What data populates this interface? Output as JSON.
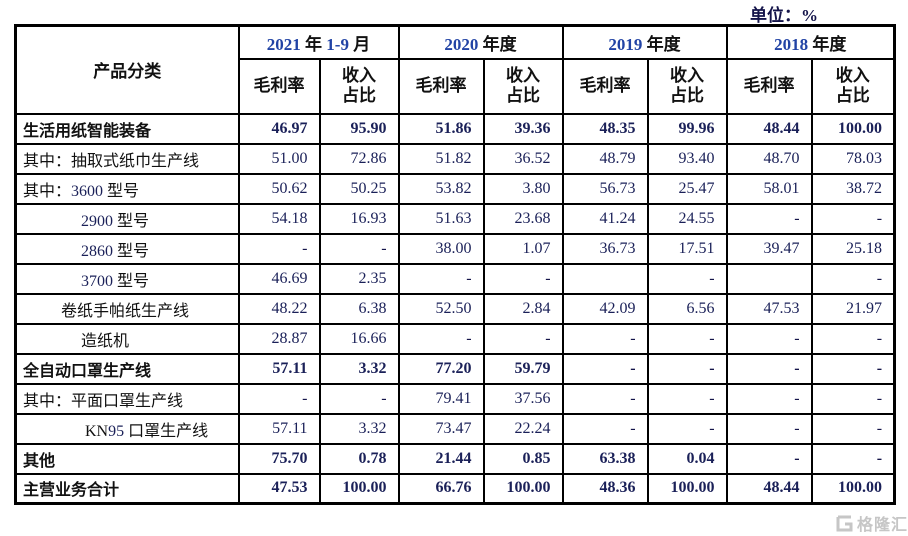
{
  "unit_label": "单位：%",
  "table": {
    "product_col_header": "产品分类",
    "periods": [
      "2021 年 1-9 月",
      "2020 年度",
      "2019 年度",
      "2018 年度"
    ],
    "col_margin": "毛利率",
    "col_share": "收入\n占比"
  },
  "rows": [
    {
      "label": "生活用纸智能装备",
      "bold": true,
      "indent": "l0",
      "v": [
        "46.97",
        "95.90",
        "51.86",
        "39.36",
        "48.35",
        "99.96",
        "48.44",
        "100.00"
      ]
    },
    {
      "label": "其中：抽取式纸巾生产线",
      "bold": false,
      "indent": "l0",
      "v": [
        "51.00",
        "72.86",
        "51.82",
        "36.52",
        "48.79",
        "93.40",
        "48.70",
        "78.03"
      ]
    },
    {
      "label": "其中：3600 型号",
      "bold": false,
      "indent": "l0",
      "v": [
        "50.62",
        "50.25",
        "53.82",
        "3.80",
        "56.73",
        "25.47",
        "58.01",
        "38.72"
      ]
    },
    {
      "label": "2900 型号",
      "bold": false,
      "indent": "model",
      "v": [
        "54.18",
        "16.93",
        "51.63",
        "23.68",
        "41.24",
        "24.55",
        "-",
        "-"
      ]
    },
    {
      "label": "2860 型号",
      "bold": false,
      "indent": "model",
      "v": [
        "-",
        "-",
        "38.00",
        "1.07",
        "36.73",
        "17.51",
        "39.47",
        "25.18"
      ]
    },
    {
      "label": "3700 型号",
      "bold": false,
      "indent": "model",
      "v": [
        "46.69",
        "2.35",
        "-",
        "-",
        "",
        "-",
        "",
        "-"
      ]
    },
    {
      "label": "卷纸手帕纸生产线",
      "bold": false,
      "indent": "roll",
      "v": [
        "48.22",
        "6.38",
        "52.50",
        "2.84",
        "42.09",
        "6.56",
        "47.53",
        "21.97"
      ]
    },
    {
      "label": "造纸机",
      "bold": false,
      "indent": "model",
      "v": [
        "28.87",
        "16.66",
        "-",
        "-",
        "-",
        "-",
        "-",
        "-"
      ]
    },
    {
      "label": "全自动口罩生产线",
      "bold": true,
      "indent": "l0",
      "v": [
        "57.11",
        "3.32",
        "77.20",
        "59.79",
        "-",
        "-",
        "-",
        "-"
      ]
    },
    {
      "label": "其中：平面口罩生产线",
      "bold": false,
      "indent": "l0",
      "v": [
        "-",
        "-",
        "79.41",
        "37.56",
        "-",
        "-",
        "-",
        "-"
      ]
    },
    {
      "label": "KN95 口罩生产线",
      "bold": false,
      "indent": "kn95",
      "v": [
        "57.11",
        "3.32",
        "73.47",
        "22.24",
        "-",
        "-",
        "-",
        "-"
      ]
    },
    {
      "label": "其他",
      "bold": true,
      "indent": "l0",
      "v": [
        "75.70",
        "0.78",
        "21.44",
        "0.85",
        "63.38",
        "0.04",
        "-",
        "-"
      ]
    },
    {
      "label": "主营业务合计",
      "bold": true,
      "indent": "l0",
      "v": [
        "47.53",
        "100.00",
        "66.76",
        "100.00",
        "48.36",
        "100.00",
        "48.44",
        "100.00"
      ]
    }
  ],
  "watermark": {
    "logo": "gelonghui-g-logo",
    "text": "格隆汇"
  }
}
